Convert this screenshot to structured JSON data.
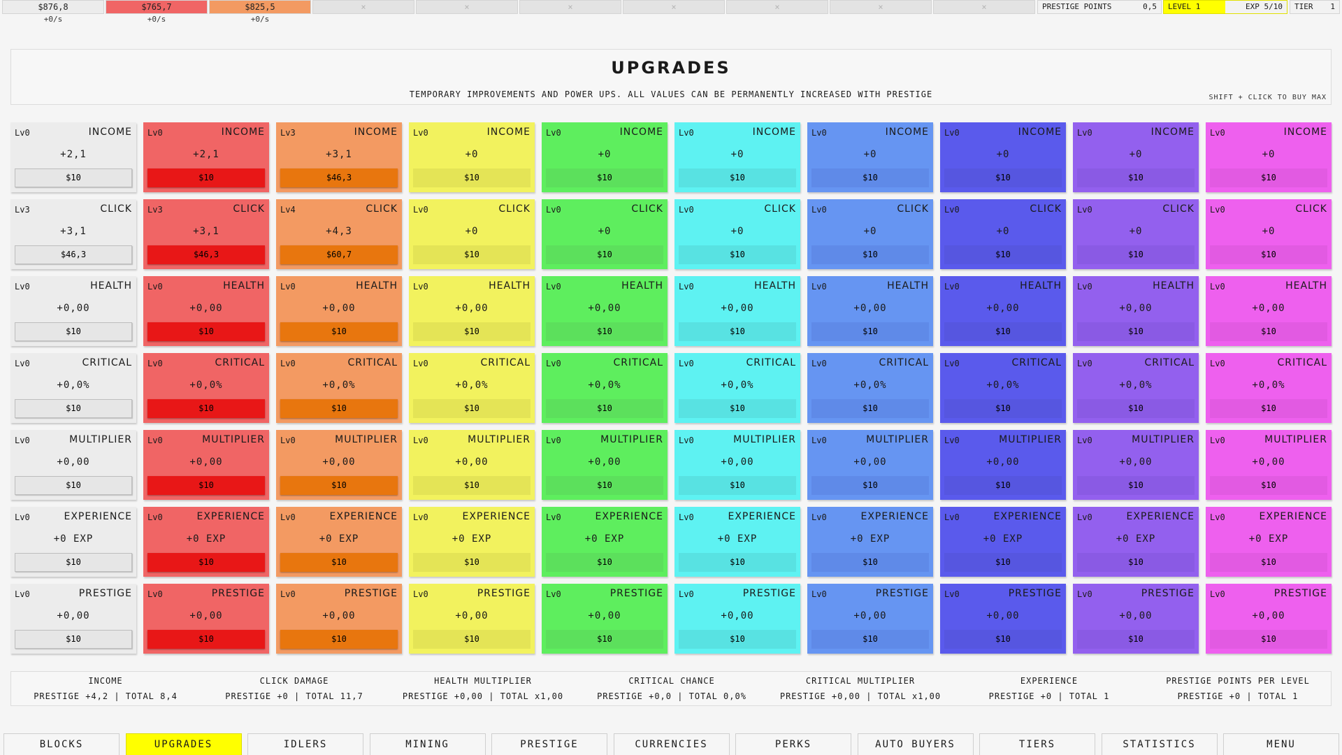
{
  "currencies": [
    {
      "amount": "$876,8",
      "rate": "+0/s",
      "color": "#ececec",
      "locked": false
    },
    {
      "amount": "$765,7",
      "rate": "+0/s",
      "color": "#f06565",
      "locked": false
    },
    {
      "amount": "$825,5",
      "rate": "+0/s",
      "color": "#f39a62",
      "locked": false
    },
    {
      "amount": "×",
      "rate": "",
      "color": "#e3e3e3",
      "locked": true
    },
    {
      "amount": "×",
      "rate": "",
      "color": "#e3e3e3",
      "locked": true
    },
    {
      "amount": "×",
      "rate": "",
      "color": "#e3e3e3",
      "locked": true
    },
    {
      "amount": "×",
      "rate": "",
      "color": "#e3e3e3",
      "locked": true
    },
    {
      "amount": "×",
      "rate": "",
      "color": "#e3e3e3",
      "locked": true
    },
    {
      "amount": "×",
      "rate": "",
      "color": "#e3e3e3",
      "locked": true
    },
    {
      "amount": "×",
      "rate": "",
      "color": "#e3e3e3",
      "locked": true
    }
  ],
  "stats": {
    "prestige_label": "PRESTIGE POINTS",
    "prestige_value": "0,5",
    "level_label": "LEVEL 1",
    "exp_label": "EXP 5/10",
    "exp_fraction": 0.5,
    "tier_label": "TIER",
    "tier_value": "1"
  },
  "header": {
    "title": "UPGRADES",
    "subtitle": "TEMPORARY IMPROVEMENTS AND POWER UPS. ALL VALUES CAN BE PERMANENTLY INCREASED WITH PRESTIGE",
    "hint": "SHIFT + CLICK TO BUY MAX"
  },
  "colors": [
    {
      "card": "#ececec",
      "button": "#e6e6e6"
    },
    {
      "card": "#f06565",
      "button": "#e81717"
    },
    {
      "card": "#f39a62",
      "button": "#e8760e"
    },
    {
      "card": "#f2f25e",
      "button": "#e4e456"
    },
    {
      "card": "#5eee5e",
      "button": "#5ce05c"
    },
    {
      "card": "#5ef2f2",
      "button": "#58e2e2"
    },
    {
      "card": "#6695f2",
      "button": "#5f8ae8"
    },
    {
      "card": "#5a5aec",
      "button": "#5656e0"
    },
    {
      "card": "#9360ee",
      "button": "#8a5ae4"
    },
    {
      "card": "#ee60ee",
      "button": "#e25ae2"
    }
  ],
  "rows": [
    {
      "name": "INCOME",
      "cells": [
        {
          "lv": "Lv0",
          "val": "+2,1",
          "cost": "$10"
        },
        {
          "lv": "Lv0",
          "val": "+2,1",
          "cost": "$10"
        },
        {
          "lv": "Lv3",
          "val": "+3,1",
          "cost": "$46,3"
        },
        {
          "lv": "Lv0",
          "val": "+0",
          "cost": "$10"
        },
        {
          "lv": "Lv0",
          "val": "+0",
          "cost": "$10"
        },
        {
          "lv": "Lv0",
          "val": "+0",
          "cost": "$10"
        },
        {
          "lv": "Lv0",
          "val": "+0",
          "cost": "$10"
        },
        {
          "lv": "Lv0",
          "val": "+0",
          "cost": "$10"
        },
        {
          "lv": "Lv0",
          "val": "+0",
          "cost": "$10"
        },
        {
          "lv": "Lv0",
          "val": "+0",
          "cost": "$10"
        }
      ]
    },
    {
      "name": "CLICK",
      "cells": [
        {
          "lv": "Lv3",
          "val": "+3,1",
          "cost": "$46,3"
        },
        {
          "lv": "Lv3",
          "val": "+3,1",
          "cost": "$46,3"
        },
        {
          "lv": "Lv4",
          "val": "+4,3",
          "cost": "$60,7"
        },
        {
          "lv": "Lv0",
          "val": "+0",
          "cost": "$10"
        },
        {
          "lv": "Lv0",
          "val": "+0",
          "cost": "$10"
        },
        {
          "lv": "Lv0",
          "val": "+0",
          "cost": "$10"
        },
        {
          "lv": "Lv0",
          "val": "+0",
          "cost": "$10"
        },
        {
          "lv": "Lv0",
          "val": "+0",
          "cost": "$10"
        },
        {
          "lv": "Lv0",
          "val": "+0",
          "cost": "$10"
        },
        {
          "lv": "Lv0",
          "val": "+0",
          "cost": "$10"
        }
      ]
    },
    {
      "name": "HEALTH",
      "cells": [
        {
          "lv": "Lv0",
          "val": "+0,00",
          "cost": "$10"
        },
        {
          "lv": "Lv0",
          "val": "+0,00",
          "cost": "$10"
        },
        {
          "lv": "Lv0",
          "val": "+0,00",
          "cost": "$10"
        },
        {
          "lv": "Lv0",
          "val": "+0,00",
          "cost": "$10"
        },
        {
          "lv": "Lv0",
          "val": "+0,00",
          "cost": "$10"
        },
        {
          "lv": "Lv0",
          "val": "+0,00",
          "cost": "$10"
        },
        {
          "lv": "Lv0",
          "val": "+0,00",
          "cost": "$10"
        },
        {
          "lv": "Lv0",
          "val": "+0,00",
          "cost": "$10"
        },
        {
          "lv": "Lv0",
          "val": "+0,00",
          "cost": "$10"
        },
        {
          "lv": "Lv0",
          "val": "+0,00",
          "cost": "$10"
        }
      ]
    },
    {
      "name": "CRITICAL",
      "cells": [
        {
          "lv": "Lv0",
          "val": "+0,0%",
          "cost": "$10"
        },
        {
          "lv": "Lv0",
          "val": "+0,0%",
          "cost": "$10"
        },
        {
          "lv": "Lv0",
          "val": "+0,0%",
          "cost": "$10"
        },
        {
          "lv": "Lv0",
          "val": "+0,0%",
          "cost": "$10"
        },
        {
          "lv": "Lv0",
          "val": "+0,0%",
          "cost": "$10"
        },
        {
          "lv": "Lv0",
          "val": "+0,0%",
          "cost": "$10"
        },
        {
          "lv": "Lv0",
          "val": "+0,0%",
          "cost": "$10"
        },
        {
          "lv": "Lv0",
          "val": "+0,0%",
          "cost": "$10"
        },
        {
          "lv": "Lv0",
          "val": "+0,0%",
          "cost": "$10"
        },
        {
          "lv": "Lv0",
          "val": "+0,0%",
          "cost": "$10"
        }
      ]
    },
    {
      "name": "MULTIPLIER",
      "cells": [
        {
          "lv": "Lv0",
          "val": "+0,00",
          "cost": "$10"
        },
        {
          "lv": "Lv0",
          "val": "+0,00",
          "cost": "$10"
        },
        {
          "lv": "Lv0",
          "val": "+0,00",
          "cost": "$10"
        },
        {
          "lv": "Lv0",
          "val": "+0,00",
          "cost": "$10"
        },
        {
          "lv": "Lv0",
          "val": "+0,00",
          "cost": "$10"
        },
        {
          "lv": "Lv0",
          "val": "+0,00",
          "cost": "$10"
        },
        {
          "lv": "Lv0",
          "val": "+0,00",
          "cost": "$10"
        },
        {
          "lv": "Lv0",
          "val": "+0,00",
          "cost": "$10"
        },
        {
          "lv": "Lv0",
          "val": "+0,00",
          "cost": "$10"
        },
        {
          "lv": "Lv0",
          "val": "+0,00",
          "cost": "$10"
        }
      ]
    },
    {
      "name": "EXPERIENCE",
      "cells": [
        {
          "lv": "Lv0",
          "val": "+0 EXP",
          "cost": "$10"
        },
        {
          "lv": "Lv0",
          "val": "+0 EXP",
          "cost": "$10"
        },
        {
          "lv": "Lv0",
          "val": "+0 EXP",
          "cost": "$10"
        },
        {
          "lv": "Lv0",
          "val": "+0 EXP",
          "cost": "$10"
        },
        {
          "lv": "Lv0",
          "val": "+0 EXP",
          "cost": "$10"
        },
        {
          "lv": "Lv0",
          "val": "+0 EXP",
          "cost": "$10"
        },
        {
          "lv": "Lv0",
          "val": "+0 EXP",
          "cost": "$10"
        },
        {
          "lv": "Lv0",
          "val": "+0 EXP",
          "cost": "$10"
        },
        {
          "lv": "Lv0",
          "val": "+0 EXP",
          "cost": "$10"
        },
        {
          "lv": "Lv0",
          "val": "+0 EXP",
          "cost": "$10"
        }
      ]
    },
    {
      "name": "PRESTIGE",
      "cells": [
        {
          "lv": "Lv0",
          "val": "+0,00",
          "cost": "$10"
        },
        {
          "lv": "Lv0",
          "val": "+0,00",
          "cost": "$10"
        },
        {
          "lv": "Lv0",
          "val": "+0,00",
          "cost": "$10"
        },
        {
          "lv": "Lv0",
          "val": "+0,00",
          "cost": "$10"
        },
        {
          "lv": "Lv0",
          "val": "+0,00",
          "cost": "$10"
        },
        {
          "lv": "Lv0",
          "val": "+0,00",
          "cost": "$10"
        },
        {
          "lv": "Lv0",
          "val": "+0,00",
          "cost": "$10"
        },
        {
          "lv": "Lv0",
          "val": "+0,00",
          "cost": "$10"
        },
        {
          "lv": "Lv0",
          "val": "+0,00",
          "cost": "$10"
        },
        {
          "lv": "Lv0",
          "val": "+0,00",
          "cost": "$10"
        }
      ]
    }
  ],
  "summary": [
    {
      "title": "INCOME",
      "value": "PRESTIGE +4,2 | TOTAL 8,4"
    },
    {
      "title": "CLICK DAMAGE",
      "value": "PRESTIGE +0 | TOTAL 11,7"
    },
    {
      "title": "HEALTH MULTIPLIER",
      "value": "PRESTIGE +0,00 | TOTAL x1,00"
    },
    {
      "title": "CRITICAL CHANCE",
      "value": "PRESTIGE +0,0 | TOTAL 0,0%"
    },
    {
      "title": "CRITICAL MULTIPLIER",
      "value": "PRESTIGE +0,00 | TOTAL x1,00"
    },
    {
      "title": "EXPERIENCE",
      "value": "PRESTIGE +0 | TOTAL 1"
    },
    {
      "title": "PRESTIGE POINTS PER LEVEL",
      "value": "PRESTIGE +0 | TOTAL 1"
    }
  ],
  "nav": [
    {
      "label": "BLOCKS",
      "active": false
    },
    {
      "label": "UPGRADES",
      "active": true
    },
    {
      "label": "IDLERS",
      "active": false
    },
    {
      "label": "MINING",
      "active": false
    },
    {
      "label": "PRESTIGE",
      "active": false
    },
    {
      "label": "CURRENCIES",
      "active": false
    },
    {
      "label": "PERKS",
      "active": false
    },
    {
      "label": "AUTO BUYERS",
      "active": false
    },
    {
      "label": "TIERS",
      "active": false
    },
    {
      "label": "STATISTICS",
      "active": false
    },
    {
      "label": "MENU",
      "active": false
    }
  ]
}
